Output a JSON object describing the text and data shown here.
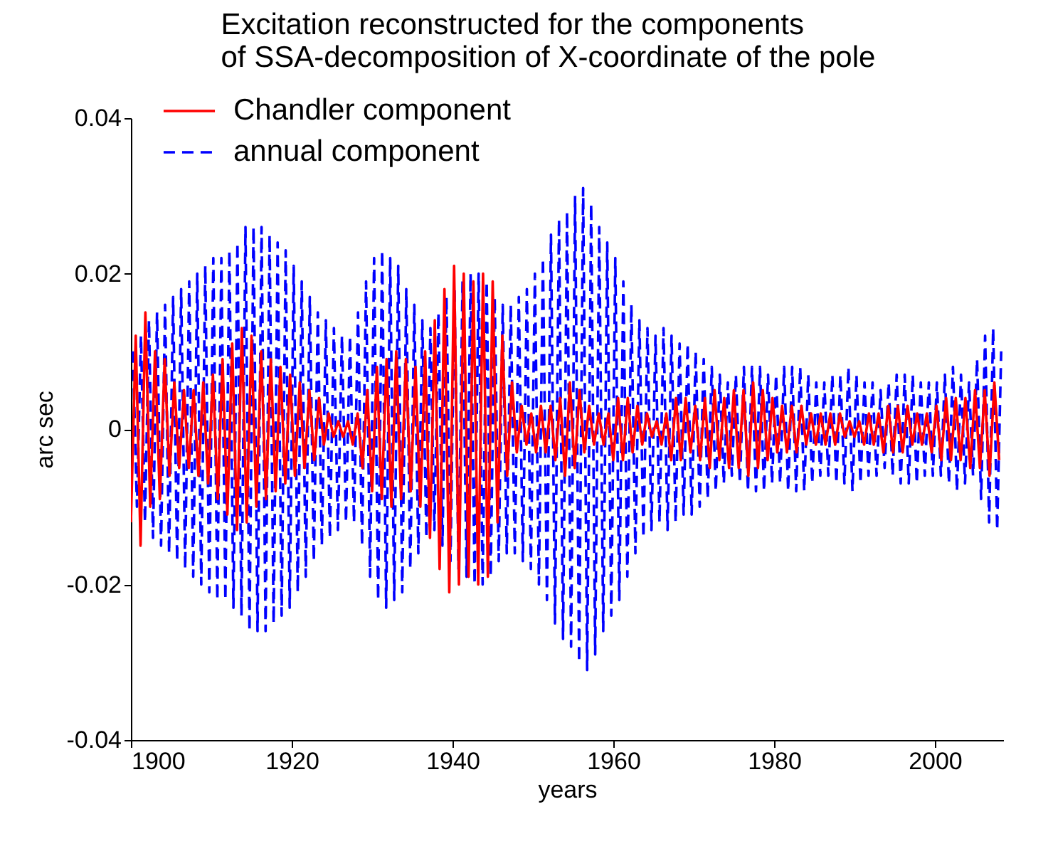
{
  "chart_data": {
    "type": "line",
    "title": "Excitation reconstructed for the components\nof SSA-decomposition of X-coordinate of the pole",
    "xlabel": "years",
    "ylabel": "arc sec",
    "xlim": [
      1900,
      2008.5
    ],
    "xticks": [
      1900,
      1920,
      1940,
      1960,
      1980,
      2000
    ],
    "ylim": [
      -0.04,
      0.04
    ],
    "yticks": [
      -0.04,
      -0.02,
      {
        "value": 0,
        "label": "0"
      },
      0.02,
      0.04
    ],
    "grid": false,
    "legend": "top left",
    "marker": "none",
    "series": [
      {
        "name": "Chandler component",
        "color": "#ff0000",
        "line_style": "solid",
        "x": [
          1900,
          1900.6,
          1901.2,
          1901.8,
          1902.4,
          1903,
          1903.6,
          1904.2,
          1904.8,
          1905.4,
          1906,
          1906.6,
          1907.2,
          1907.8,
          1908.4,
          1909,
          1909.6,
          1910.2,
          1910.8,
          1911.4,
          1912,
          1912.6,
          1913.2,
          1913.8,
          1914.4,
          1915,
          1915.6,
          1916.2,
          1916.8,
          1917.4,
          1918,
          1918.6,
          1919.2,
          1919.8,
          1920.4,
          1921,
          1921.6,
          1922.2,
          1922.8,
          1923.4,
          1924,
          1924.6,
          1925.2,
          1925.8,
          1926.4,
          1927,
          1927.6,
          1928.2,
          1928.8,
          1929.4,
          1930,
          1930.6,
          1931.2,
          1931.8,
          1932.4,
          1933,
          1933.6,
          1934.2,
          1934.8,
          1935.4,
          1936,
          1936.6,
          1937.2,
          1937.8,
          1938.4,
          1939,
          1939.6,
          1940.2,
          1940.8,
          1941.4,
          1942,
          1942.6,
          1943.2,
          1943.8,
          1944.4,
          1945,
          1945.6,
          1946.2,
          1946.8,
          1947.4,
          1948,
          1948.6,
          1949.2,
          1949.8,
          1950.4,
          1951,
          1951.6,
          1952.2,
          1952.8,
          1953.4,
          1954,
          1954.6,
          1955.2,
          1955.8,
          1956.4,
          1957,
          1957.6,
          1958.2,
          1958.8,
          1959.4,
          1960,
          1960.6,
          1961.2,
          1961.8,
          1962.4,
          1963,
          1963.6,
          1964.2,
          1964.8,
          1965.4,
          1966,
          1966.6,
          1967.2,
          1967.8,
          1968.4,
          1969,
          1969.6,
          1970.2,
          1970.8,
          1971.4,
          1972,
          1972.6,
          1973.2,
          1973.8,
          1974.4,
          1975,
          1975.6,
          1976.2,
          1976.8,
          1977.4,
          1978,
          1978.6,
          1979.2,
          1979.8,
          1980.4,
          1981,
          1981.6,
          1982.2,
          1982.8,
          1983.4,
          1984,
          1984.6,
          1985.2,
          1985.8,
          1986.4,
          1987,
          1987.6,
          1988.2,
          1988.8,
          1989.4,
          1990,
          1990.6,
          1991.2,
          1991.8,
          1992.4,
          1993,
          1993.6,
          1994.2,
          1994.8,
          1995.4,
          1996,
          1996.6,
          1997.2,
          1997.8,
          1998.4,
          1999,
          1999.6,
          2000.2,
          2000.8,
          2001.4,
          2002,
          2002.6,
          2003.2,
          2003.8,
          2004.4,
          2005,
          2005.6,
          2006.2,
          2006.8,
          2007.4,
          2008
        ],
        "values": [
          -0.012,
          0.012,
          -0.015,
          0.015,
          -0.01,
          0.01,
          -0.009,
          0.009,
          -0.006,
          0.006,
          -0.005,
          0.005,
          -0.005,
          0.005,
          -0.006,
          0.006,
          -0.007,
          0.007,
          -0.009,
          0.009,
          -0.011,
          0.011,
          -0.013,
          0.013,
          -0.012,
          0.012,
          -0.01,
          0.01,
          -0.009,
          0.009,
          -0.008,
          0.008,
          -0.007,
          0.007,
          -0.006,
          0.006,
          -0.005,
          0.005,
          -0.004,
          0.004,
          -0.002,
          0.002,
          -0.001,
          0.001,
          -0.001,
          0.001,
          -0.002,
          0.002,
          -0.005,
          0.005,
          -0.008,
          0.008,
          -0.009,
          0.009,
          -0.01,
          0.01,
          -0.009,
          0.009,
          -0.008,
          0.008,
          -0.01,
          0.01,
          -0.014,
          0.014,
          -0.018,
          0.018,
          -0.021,
          0.021,
          -0.02,
          0.02,
          -0.019,
          0.019,
          -0.02,
          0.02,
          -0.019,
          0.019,
          -0.012,
          0.012,
          -0.006,
          0.006,
          -0.003,
          0.003,
          -0.002,
          0.002,
          -0.003,
          0.003,
          -0.003,
          0.003,
          -0.004,
          0.004,
          -0.006,
          0.006,
          -0.005,
          0.005,
          -0.003,
          0.003,
          -0.002,
          0.002,
          -0.002,
          0.002,
          -0.004,
          0.004,
          -0.004,
          0.004,
          -0.003,
          0.003,
          -0.002,
          0.002,
          -0.001,
          0.001,
          -0.002,
          0.002,
          -0.004,
          0.004,
          -0.004,
          0.004,
          -0.003,
          0.003,
          -0.004,
          0.004,
          -0.005,
          0.005,
          -0.004,
          0.004,
          -0.005,
          0.005,
          -0.005,
          0.005,
          -0.006,
          0.006,
          -0.005,
          0.005,
          -0.004,
          0.004,
          -0.003,
          0.003,
          -0.003,
          0.003,
          -0.003,
          0.003,
          -0.002,
          0.002,
          -0.002,
          0.002,
          -0.002,
          0.002,
          -0.002,
          0.002,
          -0.001,
          0.001,
          -0.001,
          0.001,
          -0.002,
          0.002,
          -0.002,
          0.002,
          -0.003,
          0.003,
          -0.003,
          0.003,
          -0.003,
          0.003,
          -0.002,
          0.002,
          -0.002,
          0.002,
          -0.003,
          0.003,
          -0.004,
          0.004,
          -0.004,
          0.004,
          -0.004,
          0.004,
          -0.005,
          0.005,
          -0.005,
          0.005,
          -0.006,
          0.006,
          -0.004
        ]
      },
      {
        "name": "annual component",
        "color": "#0000ff",
        "line_style": "dashed",
        "x": [
          1900.25,
          1900.75,
          1901.25,
          1901.75,
          1902.25,
          1902.75,
          1903.25,
          1903.75,
          1904.25,
          1904.75,
          1905.25,
          1905.75,
          1906.25,
          1906.75,
          1907.25,
          1907.75,
          1908.25,
          1908.75,
          1909.25,
          1909.75,
          1910.25,
          1910.75,
          1911.25,
          1911.75,
          1912.25,
          1912.75,
          1913.25,
          1913.75,
          1914.25,
          1914.75,
          1915.25,
          1915.75,
          1916.25,
          1916.75,
          1917.25,
          1917.75,
          1918.25,
          1918.75,
          1919.25,
          1919.75,
          1920.25,
          1920.75,
          1921.25,
          1921.75,
          1922.25,
          1922.75,
          1923.25,
          1923.75,
          1924.25,
          1924.75,
          1925.25,
          1925.75,
          1926.25,
          1926.75,
          1927.25,
          1927.75,
          1928.25,
          1928.75,
          1929.25,
          1929.75,
          1930.25,
          1930.75,
          1931.25,
          1931.75,
          1932.25,
          1932.75,
          1933.25,
          1933.75,
          1934.25,
          1934.75,
          1935.25,
          1935.75,
          1936.25,
          1936.75,
          1937.25,
          1937.75,
          1938.25,
          1938.75,
          1939.25,
          1939.75,
          1940.25,
          1940.75,
          1941.25,
          1941.75,
          1942.25,
          1942.75,
          1943.25,
          1943.75,
          1944.25,
          1944.75,
          1945.25,
          1945.75,
          1946.25,
          1946.75,
          1947.25,
          1947.75,
          1948.25,
          1948.75,
          1949.25,
          1949.75,
          1950.25,
          1950.75,
          1951.25,
          1951.75,
          1952.25,
          1952.75,
          1953.25,
          1953.75,
          1954.25,
          1954.75,
          1955.25,
          1955.75,
          1956.25,
          1956.75,
          1957.25,
          1957.75,
          1958.25,
          1958.75,
          1959.25,
          1959.75,
          1960.25,
          1960.75,
          1961.25,
          1961.75,
          1962.25,
          1962.75,
          1963.25,
          1963.75,
          1964.25,
          1964.75,
          1965.25,
          1965.75,
          1966.25,
          1966.75,
          1967.25,
          1967.75,
          1968.25,
          1968.75,
          1969.25,
          1969.75,
          1970.25,
          1970.75,
          1971.25,
          1971.75,
          1972.25,
          1972.75,
          1973.25,
          1973.75,
          1974.25,
          1974.75,
          1975.25,
          1975.75,
          1976.25,
          1976.75,
          1977.25,
          1977.75,
          1978.25,
          1978.75,
          1979.25,
          1979.75,
          1980.25,
          1980.75,
          1981.25,
          1981.75,
          1982.25,
          1982.75,
          1983.25,
          1983.75,
          1984.25,
          1984.75,
          1985.25,
          1985.75,
          1986.25,
          1986.75,
          1987.25,
          1987.75,
          1988.25,
          1988.75,
          1989.25,
          1989.75,
          1990.25,
          1990.75,
          1991.25,
          1991.75,
          1992.25,
          1992.75,
          1993.25,
          1993.75,
          1994.25,
          1994.75,
          1995.25,
          1995.75,
          1996.25,
          1996.75,
          1997.25,
          1997.75,
          1998.25,
          1998.75,
          1999.25,
          1999.75,
          2000.25,
          2000.75,
          2001.25,
          2001.75,
          2002.25,
          2002.75,
          2003.25,
          2003.75,
          2004.25,
          2004.75,
          2005.25,
          2005.75,
          2006.25,
          2006.75,
          2007.25,
          2007.75,
          2008.25
        ],
        "values": [
          0.01,
          -0.01,
          0.012,
          -0.012,
          0.014,
          -0.014,
          0.015,
          -0.015,
          0.016,
          -0.016,
          0.017,
          -0.017,
          0.018,
          -0.018,
          0.019,
          -0.019,
          0.02,
          -0.02,
          0.021,
          -0.021,
          0.022,
          -0.022,
          0.022,
          -0.022,
          0.023,
          -0.023,
          0.024,
          -0.024,
          0.026,
          -0.026,
          0.026,
          -0.026,
          0.026,
          -0.026,
          0.025,
          -0.025,
          0.024,
          -0.024,
          0.023,
          -0.023,
          0.021,
          -0.021,
          0.019,
          -0.019,
          0.017,
          -0.017,
          0.015,
          -0.015,
          0.014,
          -0.014,
          0.013,
          -0.013,
          0.012,
          -0.012,
          0.012,
          -0.012,
          0.015,
          -0.015,
          0.019,
          -0.019,
          0.022,
          -0.022,
          0.023,
          -0.023,
          0.022,
          -0.022,
          0.021,
          -0.021,
          0.018,
          -0.018,
          0.016,
          -0.016,
          0.014,
          -0.014,
          0.013,
          -0.013,
          0.015,
          -0.015,
          0.017,
          -0.017,
          0.018,
          -0.018,
          0.019,
          -0.019,
          0.02,
          -0.02,
          0.02,
          -0.02,
          0.019,
          -0.019,
          0.017,
          -0.017,
          0.016,
          -0.016,
          0.016,
          -0.016,
          0.017,
          -0.017,
          0.018,
          -0.018,
          0.02,
          -0.02,
          0.022,
          -0.022,
          0.025,
          -0.025,
          0.027,
          -0.027,
          0.028,
          -0.028,
          0.03,
          -0.03,
          0.031,
          -0.031,
          0.029,
          -0.029,
          0.026,
          -0.026,
          0.024,
          -0.024,
          0.022,
          -0.022,
          0.019,
          -0.019,
          0.016,
          -0.016,
          0.014,
          -0.014,
          0.013,
          -0.013,
          0.012,
          -0.012,
          0.013,
          -0.013,
          0.012,
          -0.012,
          0.011,
          -0.011,
          0.011,
          -0.011,
          0.01,
          -0.01,
          0.009,
          -0.009,
          0.008,
          -0.008,
          0.007,
          -0.007,
          0.006,
          -0.006,
          0.007,
          -0.007,
          0.008,
          -0.008,
          0.008,
          -0.008,
          0.008,
          -0.008,
          0.007,
          -0.007,
          0.007,
          -0.007,
          0.008,
          -0.008,
          0.008,
          -0.008,
          0.008,
          -0.008,
          0.007,
          -0.007,
          0.006,
          -0.006,
          0.006,
          -0.006,
          0.007,
          -0.007,
          0.007,
          -0.007,
          0.008,
          -0.008,
          0.007,
          -0.007,
          0.006,
          -0.006,
          0.006,
          -0.006,
          0.005,
          -0.005,
          0.006,
          -0.006,
          0.007,
          -0.007,
          0.007,
          -0.007,
          0.007,
          -0.007,
          0.006,
          -0.006,
          0.006,
          -0.006,
          0.006,
          -0.006,
          0.007,
          -0.007,
          0.008,
          -0.008,
          0.007,
          -0.007,
          0.006,
          -0.006,
          0.009,
          -0.009,
          0.012,
          -0.012,
          0.013,
          -0.013,
          0.01
        ]
      }
    ]
  }
}
